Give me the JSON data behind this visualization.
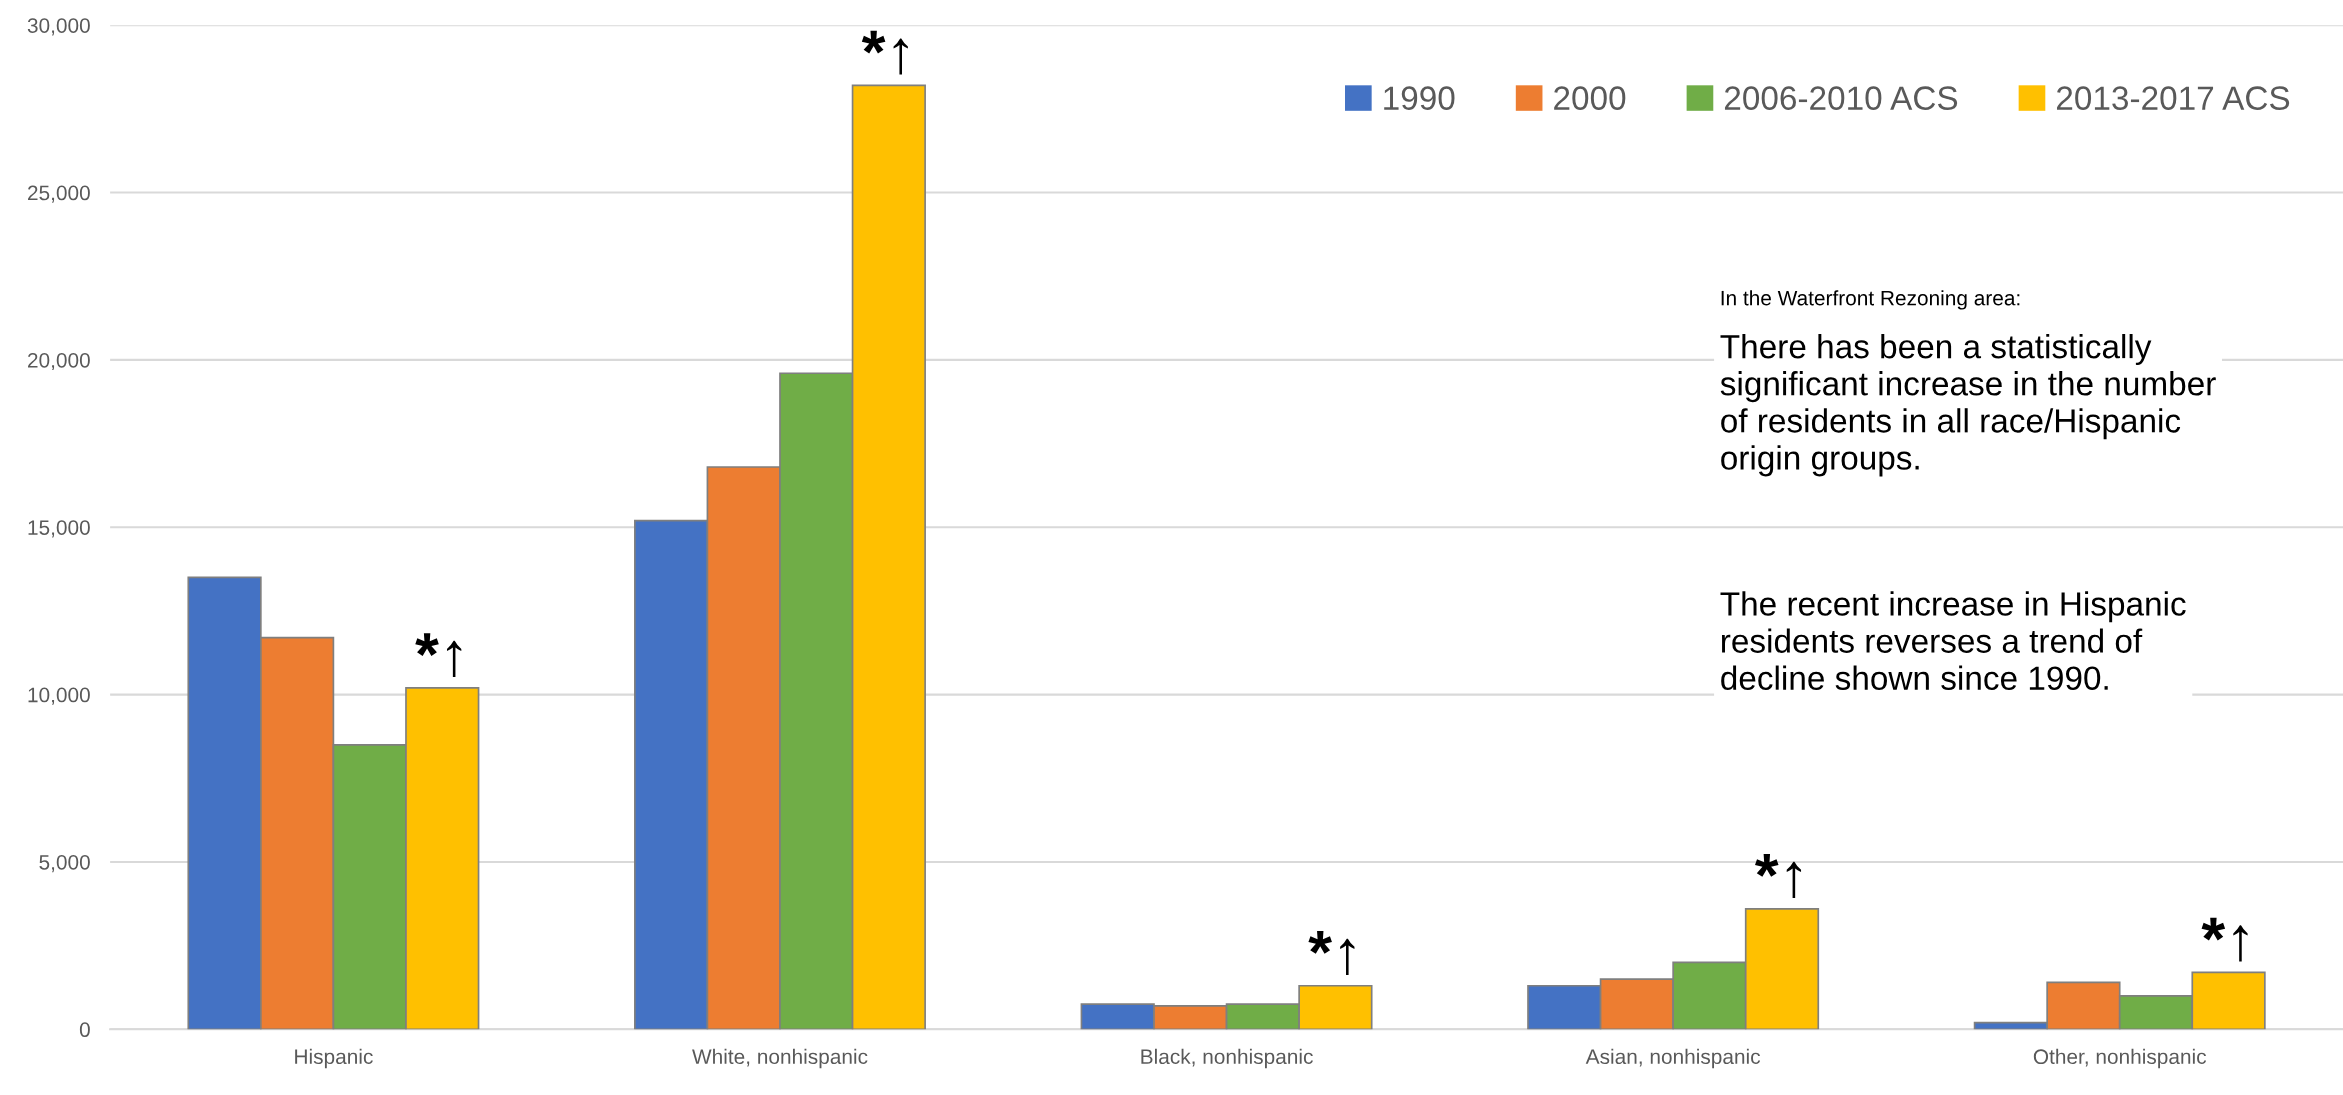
{
  "chart_data": {
    "type": "bar",
    "categories": [
      "Hispanic",
      "White, nonhispanic",
      "Black, nonhispanic",
      "Asian, nonhispanic",
      "Other, nonhispanic"
    ],
    "series": [
      {
        "name": "1990",
        "color": "#4472c4",
        "values": [
          13500,
          15200,
          750,
          1300,
          200
        ]
      },
      {
        "name": "2000",
        "color": "#ed7d31",
        "values": [
          11700,
          16800,
          700,
          1500,
          1400
        ]
      },
      {
        "name": "2006-2010 ACS",
        "color": "#70ad47",
        "values": [
          8500,
          19600,
          750,
          2000,
          1000
        ]
      },
      {
        "name": "2013-2017 ACS",
        "color": "#ffc000",
        "values": [
          10200,
          28200,
          1300,
          3600,
          1700
        ],
        "value_labels": [
          "*↑",
          "*↑",
          "*↑",
          "*↑",
          "*↑"
        ]
      }
    ],
    "ylim": [
      0,
      30000
    ],
    "yticks": [
      0,
      {
        "value": 5000,
        "label": "5,000"
      },
      {
        "value": 10000,
        "label": "10,000"
      },
      {
        "value": 15000,
        "label": "15,000"
      },
      {
        "value": 20000,
        "label": "20,000"
      },
      {
        "value": 25000,
        "label": "25,000"
      },
      {
        "value": 30000,
        "label": "30,000"
      }
    ],
    "grid": "y",
    "legend": "top right",
    "annotations": [
      "In the Waterfront Rezoning area:",
      "There has been a statistically\nsignificant increase in the number\nof residents in all race/Hispanic\norigin groups.",
      "The recent increase in Hispanic\nresidents reverses a trend of\ndecline shown since 1990."
    ]
  }
}
